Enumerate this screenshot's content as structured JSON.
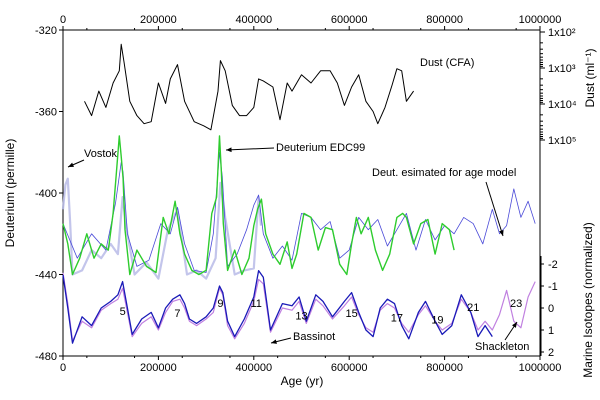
{
  "chart_data": {
    "type": "line",
    "axes": {
      "x_bottom": {
        "label": "Age (yr)",
        "range": [
          0,
          1000000
        ],
        "ticks": [
          0,
          200000,
          400000,
          600000,
          800000,
          1000000
        ],
        "tick_labels": [
          "0",
          "200000",
          "400000",
          "600000",
          "800000",
          "1000000"
        ]
      },
      "x_top": {
        "range": [
          0,
          1000000
        ],
        "ticks": [
          0,
          200000,
          400000,
          600000,
          800000,
          1000000
        ],
        "tick_labels": [
          "0",
          "200000",
          "400000",
          "600000",
          "800000",
          "1000000"
        ]
      },
      "y_left": {
        "label": "Deuterium (permille)",
        "range": [
          -480,
          -320
        ],
        "ticks": [
          -320,
          -360,
          -400,
          -440,
          -480
        ],
        "tick_labels": [
          "-320",
          "-360",
          "-400",
          "-440",
          "-480"
        ]
      },
      "y_right_top": {
        "label": "Dust (ml⁻¹)",
        "scale": "log",
        "tick_labels": [
          "1x10²",
          "1x10³",
          "1x10⁴",
          "1x10⁵"
        ]
      },
      "y_right_bottom": {
        "label": "Marine Isotopes (normalized)",
        "range": [
          -2.5,
          2
        ],
        "ticks": [
          -2,
          -1,
          0,
          1,
          2
        ],
        "tick_labels": [
          "-2",
          "-1",
          "0",
          "1",
          "2"
        ]
      }
    },
    "grid": false,
    "annotations": [
      "Dust (CFA)",
      "Vostok",
      "Deuterium EDC99",
      "Deut. esimated for age model",
      "Bassinot",
      "Shackleton"
    ],
    "stage_labels": [
      {
        "label": "5",
        "x": 125000,
        "y": -458
      },
      {
        "label": "7",
        "x": 240000,
        "y": -459
      },
      {
        "label": "9",
        "x": 330000,
        "y": -454
      },
      {
        "label": "11",
        "x": 405000,
        "y": -454
      },
      {
        "label": "13",
        "x": 500000,
        "y": -460
      },
      {
        "label": "15",
        "x": 605000,
        "y": -459
      },
      {
        "label": "17",
        "x": 700000,
        "y": -461
      },
      {
        "label": "19",
        "x": 785000,
        "y": -462
      },
      {
        "label": "21",
        "x": 860000,
        "y": -456
      },
      {
        "label": "23",
        "x": 950000,
        "y": -454
      }
    ],
    "series": [
      {
        "name": "Dust (CFA)",
        "color": "#000000",
        "axis": "left",
        "x": [
          45000,
          60000,
          75000,
          90000,
          105000,
          118000,
          122000,
          128000,
          140000,
          155000,
          170000,
          185000,
          200000,
          215000,
          225000,
          240000,
          255000,
          275000,
          295000,
          310000,
          325000,
          330000,
          340000,
          355000,
          370000,
          385000,
          400000,
          410000,
          420000,
          440000,
          455000,
          470000,
          480000,
          500000,
          520000,
          540000,
          560000,
          575000,
          590000,
          605000,
          620000,
          635000,
          650000,
          660000,
          675000,
          690000,
          700000,
          710000,
          720000,
          735000
        ],
        "y": [
          -355,
          -362,
          -350,
          -358,
          -346,
          -340,
          -327,
          -336,
          -355,
          -362,
          -366,
          -365,
          -346,
          -356,
          -344,
          -337,
          -355,
          -365,
          -367,
          -369,
          -350,
          -335,
          -340,
          -357,
          -362,
          -362,
          -358,
          -344,
          -345,
          -348,
          -364,
          -346,
          -350,
          -342,
          -346,
          -340,
          -340,
          -346,
          -357,
          -348,
          -342,
          -355,
          -360,
          -366,
          -358,
          -347,
          -339,
          -340,
          -355,
          -350
        ]
      },
      {
        "name": "Vostok",
        "color": "#b8bbe8",
        "axis": "left",
        "x": [
          0,
          5000,
          10000,
          15000,
          20000,
          40000,
          60000,
          80000,
          100000,
          115000,
          125000,
          135000,
          150000,
          175000,
          200000,
          220000,
          240000,
          260000,
          280000,
          300000,
          320000,
          330000,
          340000,
          360000,
          380000,
          400000,
          410000,
          415000
        ],
        "y": [
          -408,
          -396,
          -393,
          -415,
          -440,
          -438,
          -428,
          -432,
          -425,
          -430,
          -402,
          -420,
          -440,
          -434,
          -442,
          -418,
          -408,
          -440,
          -438,
          -442,
          -432,
          -395,
          -412,
          -440,
          -438,
          -437,
          -402,
          -416
        ]
      },
      {
        "name": "Deuterium EDC99",
        "color": "#2ecc2e",
        "axis": "left",
        "x": [
          0,
          10000,
          20000,
          35000,
          50000,
          65000,
          80000,
          95000,
          105000,
          112000,
          118000,
          122000,
          126000,
          130000,
          140000,
          155000,
          175000,
          195000,
          210000,
          222000,
          235000,
          245000,
          255000,
          270000,
          285000,
          300000,
          312000,
          322000,
          328000,
          332000,
          336000,
          345000,
          360000,
          375000,
          390000,
          400000,
          408000,
          416000,
          425000,
          440000,
          455000,
          470000,
          480000,
          490000,
          505000,
          520000,
          535000,
          550000,
          565000,
          580000,
          595000,
          605000,
          615000,
          625000,
          640000,
          655000,
          670000,
          685000,
          700000,
          712000,
          720000,
          735000,
          750000,
          765000,
          780000,
          795000,
          810000,
          820000
        ],
        "y": [
          -415,
          -425,
          -440,
          -432,
          -420,
          -432,
          -425,
          -428,
          -410,
          -390,
          -372,
          -382,
          -393,
          -418,
          -440,
          -428,
          -436,
          -439,
          -412,
          -420,
          -404,
          -420,
          -430,
          -438,
          -440,
          -438,
          -410,
          -402,
          -372,
          -390,
          -415,
          -438,
          -428,
          -440,
          -432,
          -416,
          -408,
          -403,
          -420,
          -430,
          -435,
          -424,
          -437,
          -430,
          -410,
          -412,
          -428,
          -417,
          -418,
          -435,
          -440,
          -425,
          -412,
          -420,
          -412,
          -428,
          -438,
          -430,
          -412,
          -410,
          -412,
          -425,
          -415,
          -413,
          -430,
          -415,
          -418,
          -428
        ]
      },
      {
        "name": "Deut. esimated for age model",
        "color": "#4a4ad8",
        "axis": "left",
        "x": [
          0,
          30000,
          60000,
          90000,
          110000,
          122000,
          126000,
          135000,
          155000,
          180000,
          205000,
          225000,
          240000,
          255000,
          275000,
          300000,
          315000,
          328000,
          334000,
          345000,
          365000,
          385000,
          400000,
          410000,
          420000,
          440000,
          460000,
          480000,
          500000,
          520000,
          540000,
          560000,
          580000,
          600000,
          620000,
          640000,
          660000,
          680000,
          700000,
          720000,
          740000,
          760000,
          780000,
          800000,
          820000,
          840000,
          860000,
          880000,
          900000,
          915000,
          930000,
          945000,
          960000,
          975000,
          990000
        ],
        "y": [
          -415,
          -432,
          -420,
          -428,
          -405,
          -385,
          -390,
          -420,
          -436,
          -433,
          -415,
          -420,
          -407,
          -425,
          -438,
          -439,
          -420,
          -380,
          -392,
          -436,
          -430,
          -418,
          -406,
          -401,
          -420,
          -432,
          -426,
          -433,
          -410,
          -412,
          -418,
          -414,
          -432,
          -428,
          -412,
          -418,
          -413,
          -426,
          -418,
          -410,
          -428,
          -413,
          -423,
          -416,
          -420,
          -412,
          -415,
          -425,
          -408,
          -420,
          -416,
          -398,
          -412,
          -404,
          -415
        ]
      },
      {
        "name": "Bassinot",
        "color": "#1a1ab8",
        "axis": "right_bottom",
        "x": [
          0,
          10000,
          20000,
          40000,
          60000,
          80000,
          100000,
          115000,
          125000,
          135000,
          145000,
          165000,
          185000,
          200000,
          215000,
          230000,
          245000,
          255000,
          265000,
          280000,
          300000,
          315000,
          328000,
          335000,
          345000,
          360000,
          380000,
          400000,
          410000,
          420000,
          435000,
          460000,
          480000,
          495000,
          510000,
          530000,
          545000,
          565000,
          590000,
          605000,
          620000,
          635000,
          650000,
          665000,
          680000,
          695000,
          710000,
          725000,
          745000,
          760000,
          780000,
          795000,
          815000,
          835000,
          855000,
          870000,
          885000,
          900000
        ],
        "y": [
          -1.5,
          0.0,
          1.6,
          0.4,
          0.8,
          0.0,
          -0.3,
          -0.6,
          -1.2,
          0.0,
          1.2,
          0.5,
          0.2,
          0.9,
          0.0,
          -0.4,
          -0.6,
          -0.2,
          0.5,
          0.7,
          0.4,
          0.0,
          -1.0,
          -0.7,
          0.6,
          1.3,
          0.5,
          -0.5,
          -1.7,
          -1.4,
          1.0,
          -0.2,
          -0.1,
          -0.5,
          0.6,
          -0.6,
          -0.3,
          0.4,
          -0.3,
          -0.7,
          0.2,
          1.0,
          1.3,
          0.0,
          -0.4,
          -0.2,
          0.8,
          1.4,
          0.2,
          -0.3,
          0.6,
          1.2,
          0.8,
          -0.6,
          0.2,
          1.3,
          0.8,
          1.3
        ]
      },
      {
        "name": "Shackleton",
        "color": "#c080e0",
        "axis": "right_bottom",
        "x": [
          0,
          10000,
          20000,
          40000,
          60000,
          80000,
          100000,
          115000,
          125000,
          135000,
          145000,
          165000,
          185000,
          200000,
          215000,
          230000,
          245000,
          255000,
          265000,
          280000,
          300000,
          315000,
          328000,
          335000,
          345000,
          360000,
          380000,
          400000,
          410000,
          420000,
          435000,
          460000,
          480000,
          495000,
          510000,
          530000,
          545000,
          565000,
          590000,
          605000,
          620000,
          635000,
          650000,
          665000,
          680000,
          695000,
          710000,
          725000,
          745000,
          760000,
          780000,
          795000,
          815000,
          835000,
          855000,
          870000,
          885000,
          900000,
          915000,
          930000,
          945000,
          960000,
          975000,
          990000
        ],
        "y": [
          -1.6,
          -0.2,
          1.5,
          0.6,
          0.9,
          0.1,
          -0.2,
          -0.4,
          -0.9,
          0.2,
          1.3,
          0.7,
          0.4,
          1.0,
          0.2,
          -0.3,
          -0.4,
          0.0,
          0.6,
          0.8,
          0.5,
          0.2,
          -0.9,
          -0.6,
          0.8,
          1.4,
          0.7,
          -0.3,
          -1.3,
          -1.1,
          1.1,
          0.0,
          0.1,
          -0.3,
          0.7,
          -0.4,
          -0.1,
          0.5,
          -0.1,
          -0.5,
          0.3,
          0.9,
          1.1,
          0.1,
          -0.2,
          0.0,
          0.7,
          1.1,
          0.3,
          -0.1,
          0.6,
          1.0,
          0.7,
          -0.4,
          0.2,
          1.0,
          0.6,
          1.0,
          0.3,
          -0.8,
          0.6,
          0.9,
          -0.5,
          -1.2
        ]
      }
    ]
  }
}
